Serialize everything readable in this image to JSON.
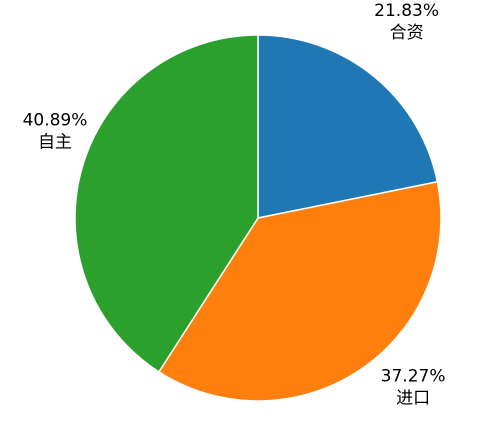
{
  "chart_data": {
    "type": "pie",
    "categories": [
      "合资",
      "进口",
      "自主"
    ],
    "values": [
      21.83,
      37.27,
      40.89
    ],
    "value_labels": [
      "21.83%",
      "37.27%",
      "40.89%"
    ],
    "colors": [
      "#1f77b4",
      "#ff7f0e",
      "#2ca02c"
    ],
    "start_angle": "12 o'clock",
    "direction": "clockwise",
    "legend": "none"
  }
}
